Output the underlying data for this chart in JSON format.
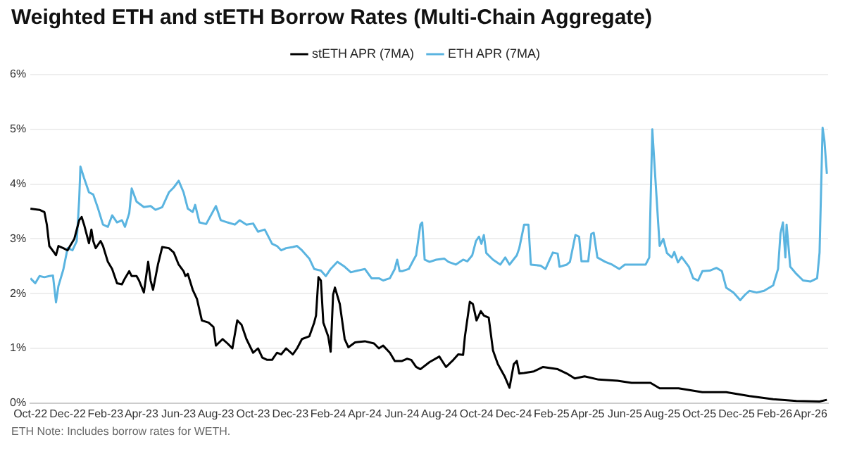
{
  "chart_data": {
    "type": "line",
    "title": "Weighted ETH and stETH Borrow Rates (Multi-Chain Aggregate)",
    "annotations": [
      "ETH Note: Includes borrow rates for WETH."
    ],
    "legend": "top",
    "grid": "y",
    "marker": "none",
    "line_style": "solid",
    "xlim": [
      "2022-10-01",
      "2026-04-30"
    ],
    "xticks": [
      {
        "value": "2022-10-01",
        "label": "Oct-22"
      },
      {
        "value": "2022-12-01",
        "label": "Dec-22"
      },
      {
        "value": "2023-02-01",
        "label": "Feb-23"
      },
      {
        "value": "2023-04-01",
        "label": "Apr-23"
      },
      {
        "value": "2023-06-01",
        "label": "Jun-23"
      },
      {
        "value": "2023-08-01",
        "label": "Aug-23"
      },
      {
        "value": "2023-10-01",
        "label": "Oct-23"
      },
      {
        "value": "2023-12-01",
        "label": "Dec-23"
      },
      {
        "value": "2024-02-01",
        "label": "Feb-24"
      },
      {
        "value": "2024-04-01",
        "label": "Apr-24"
      },
      {
        "value": "2024-06-01",
        "label": "Jun-24"
      },
      {
        "value": "2024-08-01",
        "label": "Aug-24"
      },
      {
        "value": "2024-10-01",
        "label": "Oct-24"
      },
      {
        "value": "2024-12-01",
        "label": "Dec-24"
      },
      {
        "value": "2025-02-01",
        "label": "Feb-25"
      },
      {
        "value": "2025-04-01",
        "label": "Apr-25"
      },
      {
        "value": "2025-06-01",
        "label": "Jun-25"
      },
      {
        "value": "2025-08-01",
        "label": "Aug-25"
      },
      {
        "value": "2025-10-01",
        "label": "Oct-25"
      },
      {
        "value": "2025-12-01",
        "label": "Dec-25"
      },
      {
        "value": "2026-02-01",
        "label": "Feb-26"
      },
      {
        "value": "2026-04-01",
        "label": "Apr-26"
      }
    ],
    "ylim": [
      0,
      6
    ],
    "yticks": [
      {
        "value": 0,
        "label": "0%"
      },
      {
        "value": 1,
        "label": "1%"
      },
      {
        "value": 2,
        "label": "2%"
      },
      {
        "value": 3,
        "label": "3%"
      },
      {
        "value": 4,
        "label": "4%"
      },
      {
        "value": 5,
        "label": "5%"
      },
      {
        "value": 6,
        "label": "6%"
      }
    ],
    "series": [
      {
        "name": "stETH APR (7MA)",
        "color": "#000000",
        "x": [
          "2022-10-01",
          "2022-10-16",
          "2022-10-24",
          "2022-10-28",
          "2022-11-01",
          "2022-11-09",
          "2022-11-12",
          "2022-11-16",
          "2022-11-24",
          "2022-12-01",
          "2022-12-05",
          "2022-12-12",
          "2022-12-20",
          "2022-12-24",
          "2022-12-28",
          "2023-01-01",
          "2023-01-05",
          "2023-01-09",
          "2023-01-12",
          "2023-01-16",
          "2023-01-24",
          "2023-01-28",
          "2023-02-05",
          "2023-02-12",
          "2023-02-20",
          "2023-02-28",
          "2023-03-05",
          "2023-03-12",
          "2023-03-16",
          "2023-03-24",
          "2023-03-28",
          "2023-04-05",
          "2023-04-12",
          "2023-04-16",
          "2023-04-20",
          "2023-04-28",
          "2023-05-05",
          "2023-05-16",
          "2023-05-24",
          "2023-06-01",
          "2023-06-09",
          "2023-06-12",
          "2023-06-16",
          "2023-06-24",
          "2023-07-01",
          "2023-07-09",
          "2023-07-20",
          "2023-07-28",
          "2023-08-01",
          "2023-08-12",
          "2023-08-20",
          "2023-08-28",
          "2023-09-05",
          "2023-09-12",
          "2023-09-20",
          "2023-10-01",
          "2023-10-09",
          "2023-10-16",
          "2023-10-24",
          "2023-11-01",
          "2023-11-09",
          "2023-11-16",
          "2023-11-24",
          "2023-12-05",
          "2023-12-12",
          "2023-12-20",
          "2024-01-01",
          "2024-01-09",
          "2024-01-12",
          "2024-01-16",
          "2024-01-20",
          "2024-01-24",
          "2024-02-01",
          "2024-02-05",
          "2024-02-09",
          "2024-02-12",
          "2024-02-20",
          "2024-02-28",
          "2024-03-05",
          "2024-03-16",
          "2024-04-01",
          "2024-04-16",
          "2024-04-24",
          "2024-05-01",
          "2024-05-12",
          "2024-05-20",
          "2024-06-01",
          "2024-06-09",
          "2024-06-16",
          "2024-06-24",
          "2024-07-01",
          "2024-07-16",
          "2024-08-01",
          "2024-08-12",
          "2024-08-24",
          "2024-09-01",
          "2024-09-09",
          "2024-09-12",
          "2024-09-20",
          "2024-09-25",
          "2024-10-01",
          "2024-10-08",
          "2024-10-13",
          "2024-10-21",
          "2024-10-28",
          "2024-11-05",
          "2024-11-16",
          "2024-11-24",
          "2024-12-01",
          "2024-12-06",
          "2024-12-10",
          "2024-12-18",
          "2025-01-03",
          "2025-01-18",
          "2025-02-11",
          "2025-02-26",
          "2025-03-11",
          "2025-03-27",
          "2025-04-19",
          "2025-05-20",
          "2025-06-12",
          "2025-07-13",
          "2025-07-28",
          "2025-08-28",
          "2025-10-06",
          "2025-11-14",
          "2025-12-22",
          "2026-01-30",
          "2026-03-09",
          "2026-04-16",
          "2026-04-28"
        ],
        "values": [
          3.55,
          3.53,
          3.49,
          3.26,
          2.87,
          2.75,
          2.7,
          2.87,
          2.83,
          2.79,
          2.87,
          3.0,
          3.34,
          3.4,
          3.26,
          3.09,
          2.92,
          3.17,
          2.96,
          2.83,
          2.96,
          2.87,
          2.58,
          2.45,
          2.19,
          2.17,
          2.28,
          2.41,
          2.32,
          2.32,
          2.24,
          2.02,
          2.58,
          2.24,
          2.07,
          2.53,
          2.85,
          2.83,
          2.75,
          2.53,
          2.41,
          2.32,
          2.36,
          2.07,
          1.9,
          1.51,
          1.47,
          1.39,
          1.05,
          1.17,
          1.09,
          1.0,
          1.51,
          1.43,
          1.17,
          0.92,
          1.0,
          0.83,
          0.79,
          0.79,
          0.92,
          0.89,
          1.0,
          0.89,
          1.0,
          1.17,
          1.22,
          1.47,
          1.6,
          2.3,
          2.24,
          1.47,
          1.22,
          0.94,
          1.98,
          2.11,
          1.81,
          1.17,
          1.02,
          1.11,
          1.13,
          1.09,
          1.0,
          1.05,
          0.92,
          0.77,
          0.77,
          0.81,
          0.79,
          0.66,
          0.62,
          0.75,
          0.85,
          0.66,
          0.79,
          0.89,
          0.88,
          1.22,
          1.85,
          1.81,
          1.51,
          1.68,
          1.6,
          1.56,
          0.96,
          0.71,
          0.49,
          0.28,
          0.71,
          0.77,
          0.54,
          0.55,
          0.58,
          0.66,
          0.62,
          0.54,
          0.45,
          0.49,
          0.43,
          0.41,
          0.37,
          0.37,
          0.27,
          0.27,
          0.2,
          0.2,
          0.13,
          0.07,
          0.04,
          0.03,
          0.06
        ]
      },
      {
        "name": "ETH APR (7MA)",
        "color": "#5ab4e0",
        "x": [
          "2022-10-01",
          "2022-10-09",
          "2022-10-16",
          "2022-10-24",
          "2022-11-01",
          "2022-11-07",
          "2022-11-12",
          "2022-11-16",
          "2022-11-24",
          "2022-12-01",
          "2022-12-09",
          "2022-12-16",
          "2022-12-20",
          "2022-12-22",
          "2022-12-28",
          "2023-01-05",
          "2023-01-12",
          "2023-01-20",
          "2023-01-28",
          "2023-02-05",
          "2023-02-12",
          "2023-02-20",
          "2023-02-28",
          "2023-03-05",
          "2023-03-12",
          "2023-03-16",
          "2023-03-24",
          "2023-04-05",
          "2023-04-16",
          "2023-04-24",
          "2023-05-05",
          "2023-05-16",
          "2023-05-24",
          "2023-06-01",
          "2023-06-09",
          "2023-06-16",
          "2023-06-24",
          "2023-06-28",
          "2023-07-05",
          "2023-07-16",
          "2023-08-01",
          "2023-08-09",
          "2023-08-20",
          "2023-09-01",
          "2023-09-09",
          "2023-09-20",
          "2023-10-01",
          "2023-10-09",
          "2023-10-20",
          "2023-11-01",
          "2023-11-09",
          "2023-11-16",
          "2023-11-24",
          "2023-12-05",
          "2023-12-12",
          "2023-12-20",
          "2024-01-01",
          "2024-01-09",
          "2024-01-20",
          "2024-01-28",
          "2024-02-05",
          "2024-02-16",
          "2024-02-28",
          "2024-03-09",
          "2024-03-20",
          "2024-04-01",
          "2024-04-12",
          "2024-04-24",
          "2024-05-01",
          "2024-05-12",
          "2024-05-20",
          "2024-05-24",
          "2024-05-28",
          "2024-06-01",
          "2024-06-12",
          "2024-06-20",
          "2024-06-24",
          "2024-07-01",
          "2024-07-04",
          "2024-07-08",
          "2024-07-16",
          "2024-07-27",
          "2024-08-09",
          "2024-08-16",
          "2024-08-28",
          "2024-09-09",
          "2024-09-16",
          "2024-09-24",
          "2024-09-30",
          "2024-10-05",
          "2024-10-09",
          "2024-10-13",
          "2024-10-17",
          "2024-10-28",
          "2024-11-09",
          "2024-11-17",
          "2024-11-24",
          "2024-12-06",
          "2024-12-10",
          "2024-12-18",
          "2024-12-25",
          "2024-12-29",
          "2025-01-14",
          "2025-01-22",
          "2025-02-03",
          "2025-02-11",
          "2025-02-14",
          "2025-02-26",
          "2025-03-03",
          "2025-03-12",
          "2025-03-18",
          "2025-03-22",
          "2025-04-02",
          "2025-04-07",
          "2025-04-11",
          "2025-04-17",
          "2025-04-30",
          "2025-05-11",
          "2025-05-23",
          "2025-06-01",
          "2025-07-05",
          "2025-07-11",
          "2025-07-16",
          "2025-07-20",
          "2025-07-28",
          "2025-08-03",
          "2025-08-09",
          "2025-08-17",
          "2025-08-21",
          "2025-08-27",
          "2025-09-02",
          "2025-09-14",
          "2025-09-21",
          "2025-09-29",
          "2025-10-06",
          "2025-10-18",
          "2025-10-29",
          "2025-11-07",
          "2025-11-14",
          "2025-11-26",
          "2025-12-07",
          "2025-12-15",
          "2025-12-22",
          "2026-01-03",
          "2026-01-15",
          "2026-01-30",
          "2026-02-07",
          "2026-02-11",
          "2026-02-15",
          "2026-02-19",
          "2026-02-21",
          "2026-02-27",
          "2026-03-09",
          "2026-03-20",
          "2026-04-01",
          "2026-04-12",
          "2026-04-16",
          "2026-04-21",
          "2026-04-24",
          "2026-04-28"
        ],
        "values": [
          2.28,
          2.19,
          2.32,
          2.3,
          2.32,
          2.33,
          1.84,
          2.14,
          2.44,
          2.83,
          2.79,
          2.96,
          3.72,
          4.32,
          4.11,
          3.85,
          3.81,
          3.55,
          3.26,
          3.22,
          3.43,
          3.3,
          3.34,
          3.22,
          3.47,
          3.92,
          3.68,
          3.58,
          3.6,
          3.53,
          3.58,
          3.85,
          3.94,
          4.06,
          3.85,
          3.55,
          3.49,
          3.62,
          3.3,
          3.27,
          3.6,
          3.34,
          3.3,
          3.26,
          3.34,
          3.26,
          3.28,
          3.13,
          3.17,
          2.91,
          2.87,
          2.79,
          2.83,
          2.85,
          2.87,
          2.79,
          2.64,
          2.45,
          2.42,
          2.32,
          2.45,
          2.58,
          2.49,
          2.39,
          2.42,
          2.45,
          2.28,
          2.28,
          2.24,
          2.28,
          2.45,
          2.62,
          2.41,
          2.41,
          2.45,
          2.62,
          2.7,
          3.26,
          3.3,
          2.62,
          2.58,
          2.62,
          2.64,
          2.58,
          2.53,
          2.62,
          2.59,
          2.7,
          2.96,
          3.04,
          2.91,
          3.07,
          2.74,
          2.62,
          2.53,
          2.66,
          2.53,
          2.7,
          2.83,
          3.26,
          3.26,
          2.53,
          2.51,
          2.45,
          2.75,
          2.73,
          2.49,
          2.53,
          2.58,
          3.07,
          3.04,
          2.59,
          2.59,
          3.09,
          3.11,
          2.66,
          2.58,
          2.53,
          2.45,
          2.53,
          2.53,
          2.66,
          5.0,
          4.28,
          2.87,
          3.0,
          2.74,
          2.66,
          2.76,
          2.57,
          2.67,
          2.49,
          2.28,
          2.24,
          2.41,
          2.42,
          2.47,
          2.41,
          2.11,
          2.02,
          1.88,
          1.98,
          2.05,
          2.02,
          2.05,
          2.15,
          2.45,
          3.1,
          3.3,
          2.66,
          3.26,
          2.49,
          2.36,
          2.24,
          2.22,
          2.28,
          2.75,
          5.03,
          4.79,
          4.19
        ]
      }
    ]
  }
}
